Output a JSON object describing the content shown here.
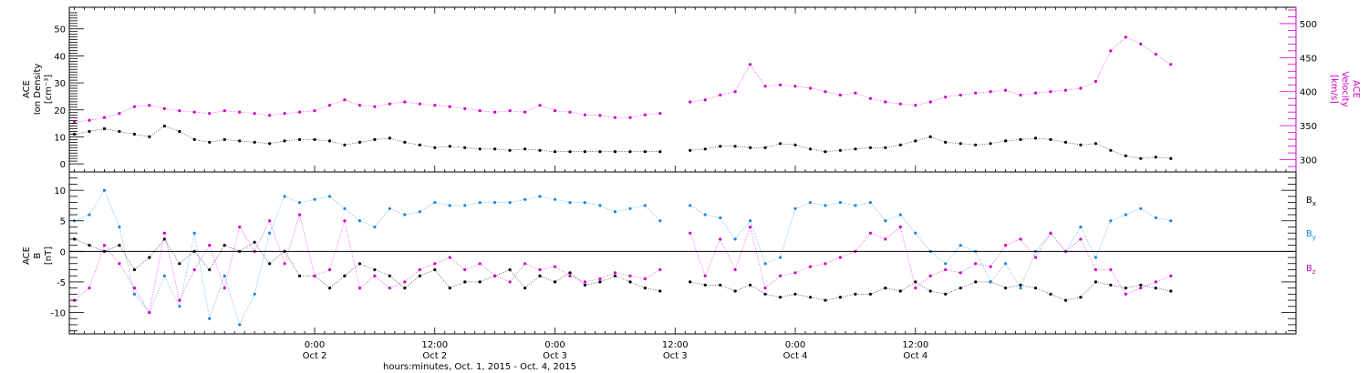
{
  "chart_data": [
    {
      "type": "scatter",
      "panel": "top",
      "left_ylabel": [
        "ACE",
        "Ion Density",
        "[cm⁻³]"
      ],
      "right_ylabel": [
        "ACE",
        "Velocity",
        "[km/s]"
      ],
      "left_ylim": [
        -3,
        58
      ],
      "right_ylim": [
        282,
        524
      ],
      "left_yticks": [
        0,
        10,
        20,
        30,
        40,
        50
      ],
      "right_yticks": [
        300,
        350,
        400,
        450,
        500
      ],
      "colors": {
        "density": "#000000",
        "velocity": "#cc00cc"
      },
      "series": [
        {
          "key": "density",
          "axis": "left",
          "x": [
            0,
            1.5,
            3,
            4.5,
            6,
            7.5,
            9,
            10.5,
            12,
            13.5,
            15,
            16.5,
            18,
            19.5,
            21,
            22.5,
            24,
            25.5,
            27,
            28.5,
            30,
            31.5,
            33,
            34.5,
            36,
            37.5,
            39,
            40.5,
            42,
            43.5,
            45,
            46.5,
            48,
            49.5,
            51,
            52.5,
            54,
            55.5,
            57,
            58.5,
            60,
            61.5,
            63,
            64.5,
            66,
            67.5,
            69,
            70.5,
            72,
            73.5,
            75,
            76.5,
            78,
            79.5,
            81,
            82.5,
            84,
            85.5,
            87,
            88.5,
            90,
            91.5,
            93,
            94.5,
            96,
            97.5,
            99,
            100.5,
            102,
            103.5,
            105,
            106.5,
            108,
            109.5
          ],
          "y": [
            11,
            12,
            13,
            12,
            11,
            10,
            14,
            12,
            9,
            8,
            9,
            8.5,
            8,
            7.5,
            8.5,
            9,
            9,
            8.5,
            7,
            8,
            9,
            9.5,
            8,
            7,
            6,
            6.5,
            6,
            5.5,
            5.5,
            5,
            5.5,
            5,
            4.5,
            4.5,
            4.5,
            4.5,
            4.5,
            4.5,
            4.5,
            4.5,
            null,
            5,
            5.5,
            6.5,
            6.5,
            6,
            6,
            7.5,
            7,
            5.5,
            4.5,
            5,
            5.5,
            6,
            6,
            7,
            8.5,
            10,
            8,
            7.5,
            7,
            7.5,
            8.5,
            9,
            9.5,
            9,
            8,
            7,
            7.5,
            5,
            3,
            2,
            2.5,
            2
          ]
        },
        {
          "key": "velocity",
          "axis": "right",
          "x": [
            0,
            1.5,
            3,
            4.5,
            6,
            7.5,
            9,
            10.5,
            12,
            13.5,
            15,
            16.5,
            18,
            19.5,
            21,
            22.5,
            24,
            25.5,
            27,
            28.5,
            30,
            31.5,
            33,
            34.5,
            36,
            37.5,
            39,
            40.5,
            42,
            43.5,
            45,
            46.5,
            48,
            49.5,
            51,
            52.5,
            54,
            55.5,
            57,
            58.5,
            60,
            61.5,
            63,
            64.5,
            66,
            67.5,
            69,
            70.5,
            72,
            73.5,
            75,
            76.5,
            78,
            79.5,
            81,
            82.5,
            84,
            85.5,
            87,
            88.5,
            90,
            91.5,
            93,
            94.5,
            96,
            97.5,
            99,
            100.5,
            102,
            103.5,
            105,
            106.5,
            108,
            109.5
          ],
          "y": [
            355,
            358,
            362,
            368,
            378,
            380,
            375,
            372,
            370,
            368,
            372,
            370,
            368,
            365,
            368,
            370,
            372,
            380,
            388,
            380,
            378,
            382,
            385,
            382,
            380,
            378,
            375,
            372,
            370,
            372,
            370,
            380,
            372,
            370,
            366,
            365,
            362,
            362,
            366,
            368,
            null,
            385,
            388,
            395,
            400,
            440,
            408,
            410,
            408,
            405,
            400,
            395,
            398,
            390,
            385,
            382,
            380,
            385,
            392,
            395,
            398,
            400,
            402,
            395,
            398,
            400,
            402,
            405,
            415,
            460,
            480,
            470,
            455,
            440
          ]
        }
      ]
    },
    {
      "type": "scatter",
      "panel": "bottom",
      "ylabel": [
        "ACE",
        "B",
        "[nT]"
      ],
      "ylim": [
        -13.5,
        13
      ],
      "yticks": [
        -10,
        -5,
        0,
        5,
        10
      ],
      "zero_line": true,
      "legend_placement": "right",
      "series": [
        {
          "key": "bx",
          "name": "B",
          "sub": "x",
          "color": "#000000",
          "x": [
            0,
            1.5,
            3,
            4.5,
            6,
            7.5,
            9,
            10.5,
            12,
            13.5,
            15,
            16.5,
            18,
            19.5,
            21,
            22.5,
            24,
            25.5,
            27,
            28.5,
            30,
            31.5,
            33,
            34.5,
            36,
            37.5,
            39,
            40.5,
            42,
            43.5,
            45,
            46.5,
            48,
            49.5,
            51,
            52.5,
            54,
            55.5,
            57,
            58.5,
            60,
            61.5,
            63,
            64.5,
            66,
            67.5,
            69,
            70.5,
            72,
            73.5,
            75,
            76.5,
            78,
            79.5,
            81,
            82.5,
            84,
            85.5,
            87,
            88.5,
            90,
            91.5,
            93,
            94.5,
            96,
            97.5,
            99,
            100.5,
            102,
            103.5,
            105,
            106.5,
            108,
            109.5
          ],
          "y": [
            2,
            1,
            0,
            1,
            -3,
            -1,
            2,
            -2,
            0,
            -3,
            1,
            0,
            1.5,
            -2,
            0,
            -4,
            -4,
            -6,
            -4,
            -2,
            -3,
            -4,
            -6,
            -4,
            -3,
            -6,
            -5,
            -5,
            -4,
            -3,
            -6,
            -4,
            -5,
            -3.5,
            -5.5,
            -5,
            -4,
            -5,
            -6,
            -6.5,
            null,
            -5,
            -5.5,
            -5.5,
            -6.5,
            -5.5,
            -7,
            -7.5,
            -7,
            -7.5,
            -8,
            -7.5,
            -7,
            -7,
            -6,
            -6.5,
            -5,
            -6.5,
            -7,
            -6,
            -5,
            -5,
            -6,
            -5.5,
            -6,
            -7,
            -8,
            -7.5,
            -5,
            -5.5,
            -6,
            -5.5,
            -6,
            -6.5
          ]
        },
        {
          "key": "by",
          "name": "B",
          "sub": "y",
          "color": "#1a86e0",
          "x": [
            0,
            1.5,
            3,
            4.5,
            6,
            7.5,
            9,
            10.5,
            12,
            13.5,
            15,
            16.5,
            18,
            19.5,
            21,
            22.5,
            24,
            25.5,
            27,
            28.5,
            30,
            31.5,
            33,
            34.5,
            36,
            37.5,
            39,
            40.5,
            42,
            43.5,
            45,
            46.5,
            48,
            49.5,
            51,
            52.5,
            54,
            55.5,
            57,
            58.5,
            60,
            61.5,
            63,
            64.5,
            66,
            67.5,
            69,
            70.5,
            72,
            73.5,
            75,
            76.5,
            78,
            79.5,
            81,
            82.5,
            84,
            85.5,
            87,
            88.5,
            90,
            91.5,
            93,
            94.5,
            96,
            97.5,
            99,
            100.5,
            102,
            103.5,
            105,
            106.5,
            108,
            109.5
          ],
          "y": [
            5,
            6,
            10,
            4,
            -7,
            -10,
            -4,
            -9,
            3,
            -11,
            -4,
            -12,
            -7,
            3,
            9,
            8,
            8.5,
            9,
            7,
            5,
            4,
            7,
            6,
            6.5,
            8,
            7.5,
            7.5,
            8,
            8,
            8,
            8.5,
            9,
            8.5,
            8,
            8,
            7.5,
            6.5,
            7,
            7.5,
            5,
            null,
            7.5,
            6,
            5.5,
            2,
            5,
            -2,
            -1,
            7,
            8,
            7.5,
            8,
            7.5,
            8,
            5,
            6,
            3,
            0,
            -2,
            1,
            0,
            -5,
            -2,
            -6,
            0,
            3,
            0,
            4,
            -1,
            5,
            6,
            7,
            5.5,
            5
          ]
        },
        {
          "key": "bz",
          "name": "B",
          "sub": "z",
          "color": "#cc00cc",
          "x": [
            0,
            1.5,
            3,
            4.5,
            6,
            7.5,
            9,
            10.5,
            12,
            13.5,
            15,
            16.5,
            18,
            19.5,
            21,
            22.5,
            24,
            25.5,
            27,
            28.5,
            30,
            31.5,
            33,
            34.5,
            36,
            37.5,
            39,
            40.5,
            42,
            43.5,
            45,
            46.5,
            48,
            49.5,
            51,
            52.5,
            54,
            55.5,
            57,
            58.5,
            60,
            61.5,
            63,
            64.5,
            66,
            67.5,
            69,
            70.5,
            72,
            73.5,
            75,
            76.5,
            78,
            79.5,
            81,
            82.5,
            84,
            85.5,
            87,
            88.5,
            90,
            91.5,
            93,
            94.5,
            96,
            97.5,
            99,
            100.5,
            102,
            103.5,
            105,
            106.5,
            108,
            109.5
          ],
          "y": [
            -8,
            -6,
            1,
            -2,
            -6,
            -10,
            3,
            -8,
            -3,
            1,
            -6,
            4,
            0,
            5,
            -2,
            6,
            -4,
            -3,
            5,
            -6,
            -4,
            -6,
            -5,
            -3,
            -2,
            -1,
            -3,
            -2,
            -4,
            -5,
            -2,
            -3,
            -2.5,
            -4,
            -5,
            -4.5,
            -3.5,
            -4,
            -4.5,
            -3,
            null,
            3,
            -4,
            2,
            -3,
            4,
            -6,
            -4,
            -3.5,
            -2.5,
            -2,
            -1,
            0,
            3,
            2,
            4,
            -6,
            -4,
            -3,
            -3.5,
            -2,
            -2.5,
            1,
            2,
            -1,
            3,
            0,
            2,
            -3,
            -3,
            -7,
            -6,
            -5,
            -4
          ]
        }
      ]
    }
  ],
  "x_axis": {
    "range_hours": [
      -0.5,
      122
    ],
    "ticks": [
      {
        "hours": 24,
        "time": "0:00",
        "day": "Oct 2"
      },
      {
        "hours": 36,
        "time": "12:00",
        "day": "Oct 2"
      },
      {
        "hours": 48,
        "time": "0:00",
        "day": "Oct 3"
      },
      {
        "hours": 60,
        "time": "12:00",
        "day": "Oct 3"
      },
      {
        "hours": 72,
        "time": "0:00",
        "day": "Oct 4"
      },
      {
        "hours": 84,
        "time": "12:00",
        "day": "Oct 4"
      }
    ],
    "minor_step_hours": 1,
    "xlabel": "hours:minutes, Oct.  1, 2015 - Oct.  4, 2015"
  }
}
